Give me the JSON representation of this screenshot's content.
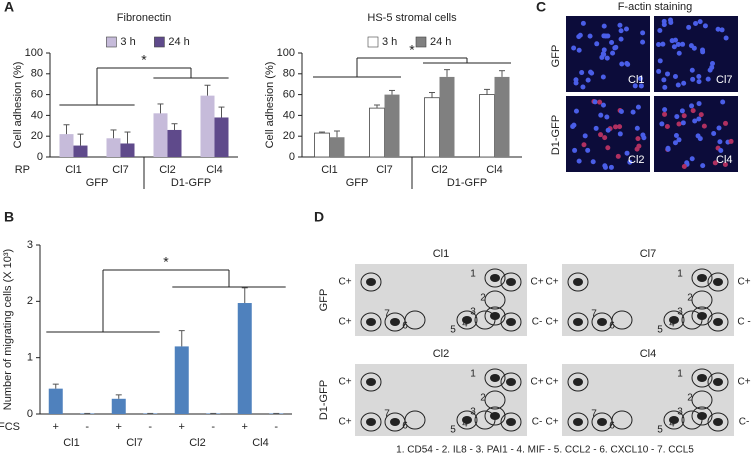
{
  "figure": {
    "panel_letters": [
      "A",
      "B",
      "C",
      "D"
    ]
  },
  "chart_data": [
    {
      "type": "bar",
      "title": "Fibronectin",
      "y_label": "Cell adhesion (%)",
      "row_label": "RP",
      "categories": [
        "Cl1",
        "Cl7",
        "Cl2",
        "Cl4"
      ],
      "groups": [
        "GFP",
        "D1-GFP"
      ],
      "ylim": [
        0,
        100
      ],
      "yticks": [
        0,
        20,
        40,
        60,
        80,
        100
      ],
      "legend": "top",
      "annotation": "*",
      "series": [
        {
          "name": "3 h",
          "color": "#c6bbda",
          "values": [
            22,
            18,
            42,
            59
          ],
          "errors": [
            9,
            8,
            9,
            10
          ]
        },
        {
          "name": "24 h",
          "color": "#5f4a8b",
          "values": [
            11,
            13,
            26,
            38
          ],
          "errors": [
            11,
            11,
            6,
            10
          ]
        }
      ]
    },
    {
      "type": "bar",
      "title": "HS-5 stromal cells",
      "y_label": "Cell adhesion (%)",
      "categories": [
        "Cl1",
        "Cl7",
        "Cl2",
        "Cl4"
      ],
      "groups": [
        "GFP",
        "D1-GFP"
      ],
      "ylim": [
        0,
        100
      ],
      "yticks": [
        0,
        20,
        40,
        60,
        80,
        100
      ],
      "legend": "top",
      "annotation": "*",
      "series": [
        {
          "name": "3 h",
          "color": "#ffffff",
          "values": [
            23,
            47,
            57,
            60
          ],
          "errors": [
            1,
            3,
            5,
            5
          ]
        },
        {
          "name": "24 h",
          "color": "#808080",
          "values": [
            19,
            60,
            77,
            77
          ],
          "errors": [
            6,
            4,
            7,
            6
          ]
        }
      ]
    },
    {
      "type": "bar",
      "y_label": "Number of migrating cells (X 10³)",
      "row_label": "FCS",
      "categories": [
        "+",
        "-",
        "+",
        "-",
        "+",
        "-",
        "+",
        "-"
      ],
      "groups": [
        "Cl1",
        "Cl7",
        "Cl2",
        "Cl4"
      ],
      "ylim": [
        0,
        3
      ],
      "yticks": [
        0,
        1,
        2,
        3
      ],
      "annotation": "*",
      "series": [
        {
          "color": "#4f81bd",
          "values": [
            0.45,
            0.01,
            0.27,
            0.01,
            1.2,
            0.01,
            1.97,
            0.01
          ],
          "errors": [
            0.08,
            0,
            0.07,
            0,
            0.28,
            0,
            0.27,
            0
          ]
        }
      ]
    }
  ],
  "staining": {
    "title": "F-actin staining",
    "row_labels": [
      "GFP",
      "D1-GFP"
    ],
    "images": [
      "Cl1",
      "Cl7",
      "Cl2",
      "Cl4"
    ]
  },
  "array": {
    "row_labels": [
      "GFP",
      "D1-GFP"
    ],
    "membranes": [
      {
        "title": "Cl1",
        "spot_labels": [
          "C+",
          "C+",
          "C+",
          "C-",
          "1",
          "2",
          "3",
          "4",
          "5",
          "6",
          "7"
        ]
      },
      {
        "title": "Cl7",
        "spot_labels": [
          "C+",
          "C+",
          "C+",
          "C -",
          "1",
          "2",
          "3",
          "4",
          "5",
          "6",
          "7"
        ]
      },
      {
        "title": "Cl2",
        "spot_labels": [
          "C+",
          "C+",
          "C+",
          "C-",
          "1",
          "2",
          "3",
          "4",
          "5",
          "6",
          "7"
        ]
      },
      {
        "title": "Cl4",
        "spot_labels": [
          "C+",
          "C+",
          "C+",
          "C-",
          "1",
          "2",
          "3",
          "4",
          "5",
          "6",
          "7"
        ]
      }
    ],
    "legend": "1. CD54 - 2. IL8 - 3. PAI1 - 4. MIF - 5. CCL2 - 6. CXCL10 - 7. CCL5"
  }
}
